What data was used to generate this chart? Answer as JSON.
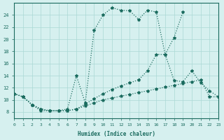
{
  "xlabel": "Humidex (Indice chaleur)",
  "bg_color": "#d6f0ef",
  "grid_color": "#aad8d5",
  "line_color": "#1a6b5e",
  "xlim": [
    0,
    23
  ],
  "ylim": [
    7,
    26
  ],
  "xticks": [
    0,
    1,
    2,
    3,
    4,
    5,
    6,
    7,
    8,
    9,
    10,
    11,
    12,
    13,
    14,
    15,
    16,
    17,
    18,
    19,
    20,
    21,
    22,
    23
  ],
  "yticks": [
    8,
    10,
    12,
    14,
    16,
    18,
    20,
    22,
    24
  ],
  "line_main_x": [
    0,
    1,
    2,
    3,
    4,
    5,
    6,
    7,
    8,
    9,
    10,
    11,
    12,
    13,
    14,
    15,
    16,
    17,
    18,
    19
  ],
  "line_main_y": [
    11,
    10.5,
    9.2,
    8.2,
    8.2,
    8.2,
    8.5,
    14.0,
    9.5,
    21.5,
    24.0,
    25.2,
    24.8,
    24.7,
    23.3,
    24.8,
    24.5,
    17.5,
    20.3,
    24.5
  ],
  "line_mid_x": [
    0,
    1,
    2,
    3,
    4,
    5,
    6,
    7,
    8,
    9,
    10,
    11,
    12,
    13,
    14,
    15,
    16,
    17,
    18,
    19,
    20,
    21,
    22,
    23
  ],
  "line_mid_y": [
    11,
    10.5,
    9.2,
    8.5,
    8.2,
    8.2,
    8.2,
    8.5,
    9.3,
    10.2,
    11.0,
    11.7,
    12.3,
    12.8,
    13.3,
    14.8,
    17.5,
    17.5,
    13.2,
    13.0,
    14.8,
    12.8,
    11.5,
    10.5
  ],
  "line_low_x": [
    0,
    1,
    2,
    3,
    4,
    5,
    6,
    7,
    8,
    9,
    10,
    11,
    12,
    13,
    14,
    15,
    16,
    17,
    18,
    19,
    20,
    21,
    22,
    23
  ],
  "line_low_y": [
    11,
    10.5,
    9.2,
    8.5,
    8.2,
    8.2,
    8.2,
    8.5,
    9.0,
    9.5,
    10.0,
    10.3,
    10.6,
    10.9,
    11.2,
    11.5,
    11.8,
    12.1,
    12.4,
    12.7,
    13.0,
    13.3,
    10.5,
    10.5
  ]
}
